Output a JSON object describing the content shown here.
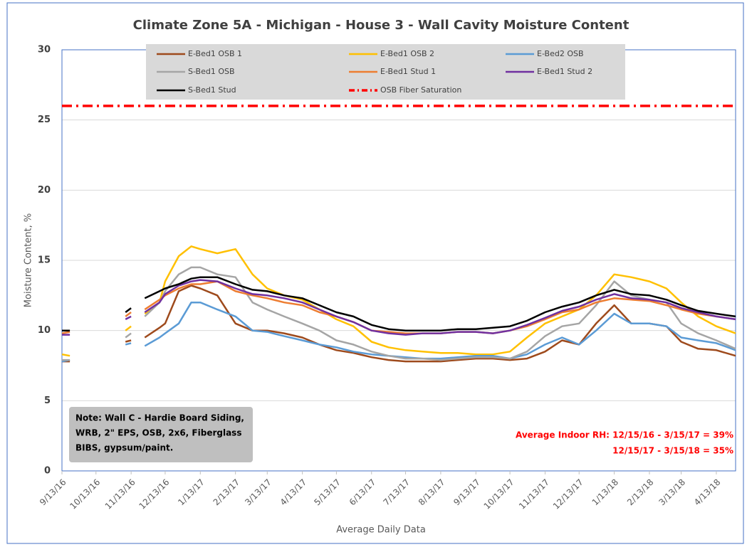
{
  "chart_data": {
    "type": "line",
    "title": "Climate Zone 5A - Michigan - House 3 - Wall Cavity Moisture Content",
    "x_label": "Average Daily Data",
    "y_label": "Moisture Content, %",
    "x": [
      "9/13/16",
      "9/20/16",
      "10/13/16",
      "11/8/16",
      "11/13/16",
      "11/20/16",
      "11/25/16",
      "12/8/16",
      "12/13/16",
      "12/25/16",
      "1/5/17",
      "1/13/17",
      "1/28/17",
      "2/13/17",
      "2/28/17",
      "3/13/17",
      "3/28/17",
      "4/13/17",
      "4/28/17",
      "5/13/17",
      "5/28/17",
      "6/13/17",
      "6/28/17",
      "7/13/17",
      "7/28/17",
      "8/13/17",
      "8/28/17",
      "9/13/17",
      "9/28/17",
      "10/13/17",
      "10/28/17",
      "11/13/17",
      "11/28/17",
      "12/13/17",
      "12/28/17",
      "1/13/18",
      "1/28/18",
      "2/13/18",
      "2/28/18",
      "3/13/18",
      "3/28/18",
      "4/13/18",
      "4/30/18"
    ],
    "series": [
      {
        "name": "E-Bed1 OSB 1",
        "color": "#9e4a1c",
        "values": [
          7.8,
          7.8,
          null,
          9.2,
          9.3,
          null,
          9.5,
          10.2,
          10.5,
          12.8,
          13.2,
          13.0,
          12.5,
          10.5,
          10.0,
          10.0,
          9.8,
          9.5,
          9.0,
          8.6,
          8.4,
          8.1,
          7.9,
          7.8,
          7.8,
          7.8,
          7.9,
          8.0,
          8.0,
          7.9,
          8.0,
          8.5,
          9.3,
          9.0,
          10.5,
          11.8,
          10.5,
          10.5,
          10.3,
          9.2,
          8.7,
          8.6,
          8.2
        ]
      },
      {
        "name": "E-Bed1 OSB 2",
        "color": "#ffc000",
        "values": [
          8.3,
          8.2,
          null,
          10.0,
          10.3,
          null,
          11.2,
          12.0,
          13.5,
          15.3,
          16.0,
          15.8,
          15.5,
          15.8,
          14.0,
          13.0,
          12.5,
          12.2,
          11.5,
          10.8,
          10.3,
          9.2,
          8.8,
          8.6,
          8.5,
          8.4,
          8.4,
          8.3,
          8.3,
          8.5,
          9.5,
          10.5,
          11.0,
          11.5,
          12.5,
          14.0,
          13.8,
          13.5,
          13.0,
          12.0,
          11.0,
          10.3,
          9.8
        ]
      },
      {
        "name": "E-Bed2 OSB",
        "color": "#5b9bd5",
        "values": [
          7.8,
          7.9,
          null,
          9.0,
          9.1,
          null,
          8.9,
          9.5,
          9.8,
          10.5,
          12.0,
          12.0,
          11.5,
          11.0,
          10.0,
          9.9,
          9.6,
          9.3,
          9.0,
          8.8,
          8.5,
          8.3,
          8.2,
          8.1,
          8.0,
          8.0,
          8.1,
          8.2,
          8.2,
          8.0,
          8.3,
          9.0,
          9.5,
          9.0,
          10.0,
          11.2,
          10.5,
          10.5,
          10.3,
          9.5,
          9.3,
          9.1,
          8.6
        ]
      },
      {
        "name": "S-Bed1 OSB",
        "color": "#a5a5a5",
        "values": [
          7.9,
          7.9,
          null,
          9.5,
          9.8,
          null,
          11.0,
          12.0,
          12.8,
          14.0,
          14.5,
          14.5,
          14.0,
          13.8,
          12.0,
          11.5,
          11.0,
          10.5,
          10.0,
          9.3,
          9.0,
          8.5,
          8.2,
          8.0,
          8.0,
          7.9,
          8.0,
          8.1,
          8.1,
          8.0,
          8.5,
          9.6,
          10.3,
          10.5,
          11.8,
          13.5,
          12.5,
          12.2,
          12.0,
          10.5,
          9.8,
          9.3,
          8.7
        ]
      },
      {
        "name": "E-Bed1 Stud 1",
        "color": "#ed7d31",
        "values": [
          9.8,
          9.9,
          null,
          11.0,
          11.3,
          null,
          11.5,
          12.2,
          12.5,
          13.0,
          13.3,
          13.3,
          13.5,
          12.8,
          12.5,
          12.3,
          12.0,
          11.8,
          11.3,
          11.0,
          10.6,
          10.0,
          9.9,
          9.8,
          9.8,
          9.8,
          9.9,
          9.9,
          9.8,
          10.0,
          10.3,
          10.8,
          11.3,
          11.5,
          12.0,
          12.3,
          12.2,
          12.1,
          11.8,
          11.5,
          11.2,
          11.0,
          10.8
        ]
      },
      {
        "name": "E-Bed1 Stud 2",
        "color": "#7030a0",
        "values": [
          9.7,
          9.7,
          null,
          10.8,
          11.0,
          null,
          11.3,
          12.0,
          12.6,
          13.2,
          13.5,
          13.6,
          13.5,
          13.0,
          12.6,
          12.5,
          12.3,
          12.0,
          11.5,
          11.0,
          10.6,
          10.0,
          9.8,
          9.7,
          9.8,
          9.8,
          9.9,
          9.9,
          9.8,
          10.0,
          10.4,
          10.9,
          11.4,
          11.7,
          12.2,
          12.6,
          12.3,
          12.2,
          12.0,
          11.6,
          11.3,
          11.0,
          10.8
        ]
      },
      {
        "name": "S-Bed1 Stud",
        "color": "#000000",
        "values": [
          10.0,
          10.0,
          null,
          11.3,
          11.6,
          null,
          12.3,
          12.8,
          13.0,
          13.3,
          13.7,
          13.8,
          13.8,
          13.3,
          12.9,
          12.8,
          12.5,
          12.3,
          11.8,
          11.3,
          11.0,
          10.4,
          10.1,
          10.0,
          10.0,
          10.0,
          10.1,
          10.1,
          10.2,
          10.3,
          10.7,
          11.3,
          11.7,
          12.0,
          12.5,
          12.9,
          12.6,
          12.5,
          12.2,
          11.8,
          11.4,
          11.2,
          11.0
        ]
      }
    ],
    "reference_lines": [
      {
        "name": "OSB Fiber Saturation",
        "value": 26,
        "color": "#ff0000",
        "style": "dash-dot"
      }
    ],
    "xlim": [
      "9/13/16",
      "4/30/18"
    ],
    "xticks": [
      "9/13/16",
      "10/13/16",
      "11/13/16",
      "12/13/16",
      "1/13/17",
      "2/13/17",
      "3/13/17",
      "4/13/17",
      "5/13/17",
      "6/13/17",
      "7/13/17",
      "8/13/17",
      "9/13/17",
      "10/13/17",
      "11/13/17",
      "12/13/17",
      "1/13/18",
      "2/13/18",
      "3/13/18",
      "4/13/18"
    ],
    "ylim": [
      0,
      30
    ],
    "yticks": [
      0,
      5,
      10,
      15,
      20,
      25,
      30
    ],
    "grid": true,
    "legend": "top",
    "note": [
      "Note: Wall C - Hardie Board Siding,",
      "WRB, 2\" EPS, OSB, 2x6, Fiberglass",
      "BIBS, gypsum/paint."
    ],
    "annotation": [
      "Average Indoor RH: 12/15/16 - 3/15/17 = 39%",
      "12/15/17 - 3/15/18 = 35%"
    ]
  }
}
